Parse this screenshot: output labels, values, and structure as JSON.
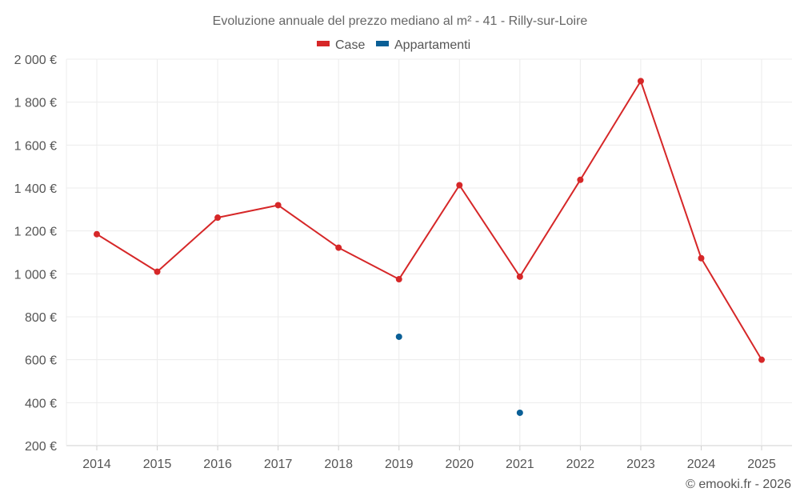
{
  "chart_data": {
    "type": "line",
    "title": "Evoluzione annuale del prezzo mediano al m² - 41 - Rilly-sur-Loire",
    "x": [
      "2014",
      "2015",
      "2016",
      "2017",
      "2018",
      "2019",
      "2020",
      "2021",
      "2022",
      "2023",
      "2024",
      "2025"
    ],
    "series": [
      {
        "name": "Case",
        "color": "#d62728",
        "mode": "line",
        "values": [
          1185,
          1010,
          1262,
          1320,
          1122,
          975,
          1413,
          987,
          1438,
          1898,
          1073,
          600
        ]
      },
      {
        "name": "Appartamenti",
        "color": "#0a5f96",
        "mode": "markers",
        "values": [
          null,
          null,
          null,
          null,
          null,
          707,
          null,
          353,
          null,
          null,
          null,
          null
        ]
      }
    ],
    "y_ticks": [
      "2 000 €",
      "1 800 €",
      "1 600 €",
      "1 400 €",
      "1 200 €",
      "1 000 €",
      "800 €",
      "600 €",
      "400 €",
      "200 €"
    ],
    "y_tick_values": [
      2000,
      1800,
      1600,
      1400,
      1200,
      1000,
      800,
      600,
      400,
      200
    ],
    "ylim": [
      200,
      2000
    ],
    "grid": true,
    "legend_position": "top-center"
  },
  "credit": "© emooki.fr - 2026"
}
